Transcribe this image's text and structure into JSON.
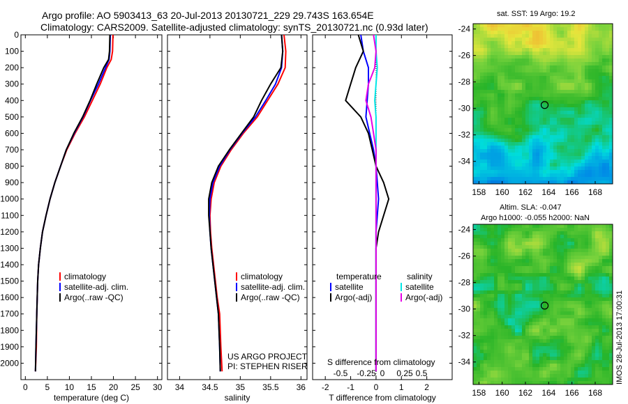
{
  "header": {
    "line1": "Argo profile: AO 5903413_63 20-Jul-2013 20130721_229 29.743S 163.654E",
    "line2": "Climatology: CARS2009. Satellite-adjusted climatology: synTS_20130721.nc (0.93d later)"
  },
  "panels": {
    "temperature": {
      "xlabel": "temperature (deg C)",
      "legend": [
        "climatology",
        "satellite-adj. clim.",
        "Argo(..raw -QC)"
      ]
    },
    "salinity": {
      "xlabel": "salinity",
      "legend": [
        "climatology",
        "satellite-adj. clim.",
        "Argo(..raw -QC)"
      ],
      "credit1": "US ARGO PROJECT",
      "credit2": "PI: STEPHEN RISER"
    },
    "difference": {
      "xlabel": "T difference from climatology",
      "top_label": "S difference from climatology",
      "legend_temp_title": "temperature",
      "legend_sal_title": "salinity",
      "legend_items": [
        "satellite",
        "Argo(-adj)"
      ]
    }
  },
  "maps": {
    "sst_title": "sat. SST: 19 Argo: 19.2",
    "sla_title1": "Altim. SLA: -0.047",
    "sla_title2": "Argo h1000: -0.055 h2000: NaN",
    "footer": "IMOS 28-Jul-2013 17:00:31",
    "lat_ticks": [
      "-24",
      "-26",
      "-28",
      "-30",
      "-32",
      "-34"
    ],
    "lon_ticks": [
      "158",
      "160",
      "162",
      "164",
      "166",
      "168"
    ]
  },
  "colors": {
    "climatology": "#ff0000",
    "satellite": "#0000ff",
    "argo": "#000000",
    "sal_satellite": "#00e6e6",
    "sal_argo": "#e600e6"
  },
  "chart_data": [
    {
      "type": "line",
      "panel": "temperature",
      "xlabel": "temperature (deg C)",
      "xlim": [
        -1,
        31
      ],
      "ylim": [
        0,
        2100
      ],
      "y_reversed": true,
      "xticks": [
        0,
        5,
        10,
        15,
        20,
        25,
        30
      ],
      "yticks": [
        0,
        100,
        200,
        300,
        400,
        500,
        600,
        700,
        800,
        900,
        1000,
        1100,
        1200,
        1300,
        1400,
        1500,
        1600,
        1700,
        1800,
        1900,
        2000
      ],
      "series": [
        {
          "name": "climatology",
          "color": "#ff0000",
          "x": [
            19.9,
            19.8,
            19.5,
            18.5,
            17.0,
            15.2,
            13.4,
            11.3,
            9.4,
            8.0,
            6.7,
            5.6,
            4.7,
            3.9,
            3.4,
            3.0,
            2.8,
            2.6,
            2.5,
            2.3
          ],
          "y": [
            0,
            100,
            150,
            200,
            300,
            400,
            500,
            600,
            700,
            800,
            900,
            1000,
            1100,
            1200,
            1300,
            1400,
            1500,
            1700,
            1900,
            2050
          ]
        },
        {
          "name": "satellite-adj. clim.",
          "color": "#0000ff",
          "x": [
            19.3,
            19.2,
            19.0,
            18.2,
            16.6,
            14.8,
            13.1,
            11.1,
            9.3,
            8.0,
            6.7,
            5.6,
            4.7,
            3.9,
            3.4,
            3.0,
            2.8,
            2.6,
            2.4,
            2.3
          ],
          "y": [
            0,
            100,
            150,
            200,
            300,
            400,
            500,
            600,
            700,
            800,
            900,
            1000,
            1100,
            1200,
            1300,
            1400,
            1500,
            1700,
            1900,
            2050
          ]
        },
        {
          "name": "Argo(..raw -QC)",
          "color": "#000000",
          "x": [
            19.2,
            19.1,
            18.9,
            17.8,
            16.2,
            14.7,
            13.0,
            11.0,
            9.3,
            8.0,
            6.7,
            5.6,
            4.7,
            3.9,
            3.4,
            3.0,
            2.8,
            2.6,
            2.4,
            2.3
          ],
          "y": [
            0,
            100,
            150,
            200,
            300,
            400,
            500,
            600,
            700,
            800,
            900,
            1000,
            1100,
            1200,
            1300,
            1400,
            1500,
            1700,
            1900,
            2050
          ]
        }
      ]
    },
    {
      "type": "line",
      "panel": "salinity",
      "xlabel": "salinity",
      "xlim": [
        33.8,
        36.1
      ],
      "ylim": [
        0,
        2100
      ],
      "y_reversed": true,
      "xticks": [
        34,
        34.5,
        35,
        35.5,
        36
      ],
      "series": [
        {
          "name": "climatology",
          "color": "#ff0000",
          "x": [
            35.72,
            35.75,
            35.74,
            35.62,
            35.45,
            35.28,
            35.05,
            34.85,
            34.68,
            34.57,
            34.52,
            34.5,
            34.51,
            34.53,
            34.56,
            34.59,
            34.62,
            34.66,
            34.68,
            34.7
          ],
          "y": [
            0,
            100,
            200,
            300,
            400,
            500,
            600,
            700,
            800,
            900,
            1000,
            1100,
            1200,
            1300,
            1400,
            1500,
            1600,
            1700,
            1900,
            2050
          ]
        },
        {
          "name": "satellite-adj. clim.",
          "color": "#0000ff",
          "x": [
            35.68,
            35.7,
            35.68,
            35.58,
            35.42,
            35.25,
            35.03,
            34.83,
            34.66,
            34.55,
            34.5,
            34.49,
            34.5,
            34.52,
            34.55,
            34.58,
            34.61,
            34.64,
            34.66,
            34.67
          ],
          "y": [
            0,
            100,
            200,
            300,
            400,
            500,
            600,
            700,
            800,
            900,
            1000,
            1100,
            1200,
            1300,
            1400,
            1500,
            1600,
            1700,
            1900,
            2050
          ]
        },
        {
          "name": "Argo(..raw -QC)",
          "color": "#000000",
          "x": [
            35.68,
            35.7,
            35.67,
            35.5,
            35.35,
            35.22,
            35.02,
            34.82,
            34.64,
            34.53,
            34.48,
            34.48,
            34.5,
            34.52,
            34.55,
            34.58,
            34.61,
            34.64,
            34.66,
            34.67
          ],
          "y": [
            0,
            100,
            200,
            300,
            400,
            500,
            600,
            700,
            800,
            900,
            1000,
            1100,
            1200,
            1300,
            1400,
            1500,
            1600,
            1700,
            1900,
            2050
          ]
        }
      ]
    },
    {
      "type": "line",
      "panel": "difference",
      "xlabel": "T difference from climatology",
      "xlim": [
        -2.5,
        3
      ],
      "ylim": [
        0,
        2100
      ],
      "y_reversed": true,
      "xticks": [
        -2,
        -1,
        0,
        1,
        2
      ],
      "top_xlabel": "S difference from climatology",
      "top_xticks": [
        "-0.5",
        "-0.25",
        "0",
        "0.25",
        "0.5"
      ],
      "series": [
        {
          "name": "temperature satellite",
          "color": "#0000ff",
          "x": [
            -0.6,
            -0.5,
            -0.3,
            -0.3,
            -0.35,
            -0.4,
            -0.25,
            -0.1,
            0.0,
            0.05,
            0.1,
            0.05,
            0.0,
            0.0,
            0.0,
            0.0,
            0.0
          ],
          "y": [
            0,
            100,
            200,
            300,
            400,
            500,
            600,
            700,
            800,
            900,
            1000,
            1100,
            1200,
            1300,
            1500,
            1800,
            2050
          ]
        },
        {
          "name": "temperature Argo(-adj)",
          "color": "#000000",
          "x": [
            -0.7,
            -0.5,
            -0.8,
            -1.0,
            -1.2,
            -0.6,
            -0.3,
            -0.15,
            0.0,
            0.3,
            0.5,
            0.3,
            0.1,
            0.0,
            0.0,
            0.0,
            0.0
          ],
          "y": [
            0,
            100,
            200,
            300,
            400,
            500,
            600,
            700,
            800,
            900,
            1000,
            1100,
            1200,
            1300,
            1500,
            1800,
            2050
          ]
        },
        {
          "name": "salinity satellite",
          "color": "#00e6e6",
          "x": [
            0.0,
            0.0,
            0.05,
            0.0,
            -0.05,
            0.0,
            0.0,
            0.0,
            0.0,
            0.0,
            0.0,
            0.0,
            0.0,
            0.0,
            0.0
          ],
          "y": [
            0,
            100,
            200,
            300,
            400,
            500,
            600,
            700,
            900,
            1000,
            1100,
            1300,
            1500,
            1800,
            2050
          ]
        },
        {
          "name": "salinity Argo(-adj)",
          "color": "#e600e6",
          "x": [
            -0.1,
            0.0,
            -0.05,
            -0.3,
            -0.4,
            -0.2,
            -0.1,
            0.0,
            0.0,
            0.0,
            0.0,
            0.0,
            0.0,
            0.0,
            0.0
          ],
          "y": [
            0,
            100,
            200,
            300,
            400,
            500,
            600,
            700,
            900,
            1000,
            1100,
            1300,
            1500,
            1800,
            2050
          ]
        }
      ]
    }
  ]
}
